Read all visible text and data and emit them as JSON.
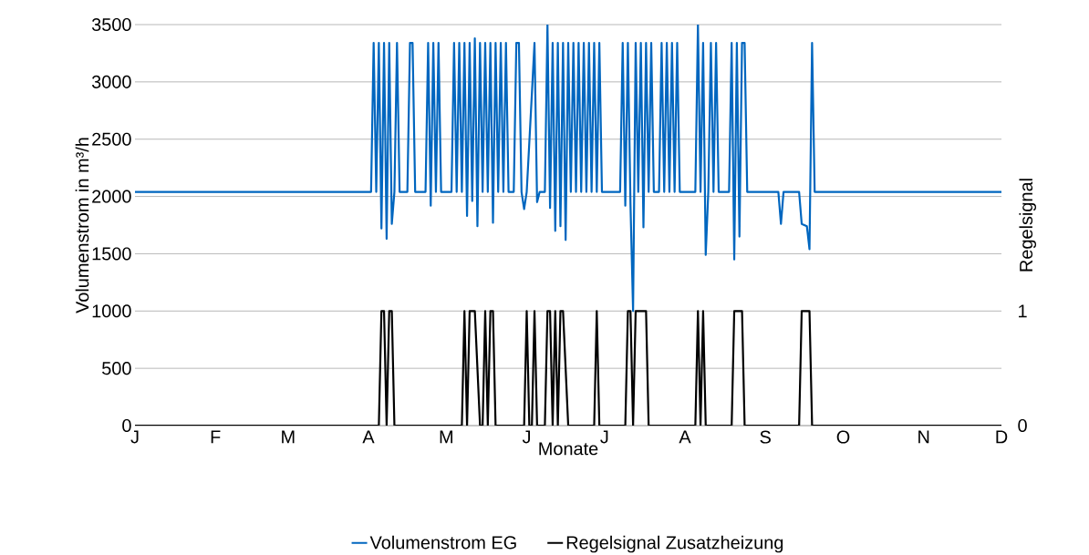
{
  "chart_data": {
    "type": "line",
    "xlabel": "Monate",
    "ylabel": "Volumenstrom in m³/h",
    "y2label": "Regelsignal",
    "categories": [
      "J",
      null,
      null,
      null,
      null,
      null,
      null,
      null,
      null,
      null,
      null,
      null,
      null,
      null,
      null,
      null,
      null,
      null,
      null,
      null,
      null,
      null,
      null,
      null,
      null,
      null,
      null,
      null,
      null,
      null,
      null,
      "F",
      null,
      null,
      null,
      null,
      null,
      null,
      null,
      null,
      null,
      null,
      null,
      null,
      null,
      null,
      null,
      null,
      null,
      null,
      null,
      null,
      null,
      null,
      null,
      null,
      null,
      null,
      null,
      "M",
      null,
      null,
      null,
      null,
      null,
      null,
      null,
      null,
      null,
      null,
      null,
      null,
      null,
      null,
      null,
      null,
      null,
      null,
      null,
      null,
      null,
      null,
      null,
      null,
      null,
      null,
      null,
      null,
      null,
      null,
      "A",
      null,
      null,
      null,
      null,
      null,
      null,
      null,
      null,
      null,
      null,
      null,
      null,
      null,
      null,
      null,
      null,
      null,
      null,
      null,
      null,
      null,
      null,
      null,
      null,
      null,
      null,
      null,
      null,
      null,
      "M",
      null,
      null,
      null,
      null,
      null,
      null,
      null,
      null,
      null,
      null,
      null,
      null,
      null,
      null,
      null,
      null,
      null,
      null,
      null,
      null,
      null,
      null,
      null,
      null,
      null,
      null,
      null,
      null,
      null,
      null,
      "J",
      null,
      null,
      null,
      null,
      null,
      null,
      null,
      null,
      null,
      null,
      null,
      null,
      null,
      null,
      null,
      null,
      null,
      null,
      null,
      null,
      null,
      null,
      null,
      null,
      null,
      null,
      null,
      null,
      null,
      "J",
      null,
      null,
      null,
      null,
      null,
      null,
      null,
      null,
      null,
      null,
      null,
      null,
      null,
      null,
      null,
      null,
      null,
      null,
      null,
      null,
      null,
      null,
      null,
      null,
      null,
      null,
      null,
      null,
      null,
      null,
      "A",
      null,
      null,
      null,
      null,
      null,
      null,
      null,
      null,
      null,
      null,
      null,
      null,
      null,
      null,
      null,
      null,
      null,
      null,
      null,
      null,
      null,
      null,
      null,
      null,
      null,
      null,
      null,
      null,
      null,
      null,
      "S",
      null,
      null,
      null,
      null,
      null,
      null,
      null,
      null,
      null,
      null,
      null,
      null,
      null,
      null,
      null,
      null,
      null,
      null,
      null,
      null,
      null,
      null,
      null,
      null,
      null,
      null,
      null,
      null,
      null,
      "O",
      null,
      null,
      null,
      null,
      null,
      null,
      null,
      null,
      null,
      null,
      null,
      null,
      null,
      null,
      null,
      null,
      null,
      null,
      null,
      null,
      null,
      null,
      null,
      null,
      null,
      null,
      null,
      null,
      null,
      null,
      "N",
      null,
      null,
      null,
      null,
      null,
      null,
      null,
      null,
      null,
      null,
      null,
      null,
      null,
      null,
      null,
      null,
      null,
      null,
      null,
      null,
      null,
      null,
      null,
      null,
      null,
      null,
      null,
      null,
      null,
      "D"
    ],
    "ylim": [
      0,
      3500
    ],
    "yticks": [
      0,
      500,
      1000,
      1500,
      2000,
      2500,
      3000,
      3500
    ],
    "y2lim": [
      0,
      3.5
    ],
    "y2ticks": [
      0,
      1
    ],
    "grid": "y",
    "legend": "bottom",
    "marker": "none",
    "line_style": "solid",
    "series": [
      {
        "name": "Volumenstrom  EG",
        "color": "#0066bf",
        "values": [
          2040,
          2040,
          2040,
          2040,
          2040,
          2040,
          2040,
          2040,
          2040,
          2040,
          2040,
          2040,
          2040,
          2040,
          2040,
          2040,
          2040,
          2040,
          2040,
          2040,
          2040,
          2040,
          2040,
          2040,
          2040,
          2040,
          2040,
          2040,
          2040,
          2040,
          2040,
          2040,
          2040,
          2040,
          2040,
          2040,
          2040,
          2040,
          2040,
          2040,
          2040,
          2040,
          2040,
          2040,
          2040,
          2040,
          2040,
          2040,
          2040,
          2040,
          2040,
          2040,
          2040,
          2040,
          2040,
          2040,
          2040,
          2040,
          2040,
          2040,
          2040,
          2040,
          2040,
          2040,
          2040,
          2040,
          2040,
          2040,
          2040,
          2040,
          2040,
          2040,
          2040,
          2040,
          2040,
          2040,
          2040,
          2040,
          2040,
          2040,
          2040,
          2040,
          2040,
          2040,
          2040,
          2040,
          2040,
          2040,
          2040,
          2040,
          2040,
          2040,
          3340,
          2040,
          3340,
          1720,
          3340,
          1630,
          3340,
          1760,
          2040,
          3340,
          2040,
          2040,
          2040,
          2040,
          3340,
          3340,
          2040,
          2040,
          2040,
          2040,
          2040,
          3340,
          1920,
          3340,
          2040,
          3340,
          2040,
          2040,
          2040,
          2040,
          2040,
          3340,
          2040,
          3340,
          2040,
          3340,
          1830,
          3340,
          1960,
          3380,
          1740,
          3340,
          2040,
          3340,
          2040,
          3340,
          1770,
          3340,
          2040,
          3340,
          2040,
          3340,
          2040,
          2040,
          2040,
          3340,
          3340,
          2040,
          1890,
          2040,
          2470,
          2900,
          3340,
          1950,
          2040,
          2040,
          2040,
          3500,
          1900,
          3340,
          1700,
          3340,
          1740,
          3340,
          1620,
          3340,
          2040,
          3340,
          2040,
          3340,
          2040,
          3340,
          2040,
          3340,
          2040,
          3340,
          2040,
          3340,
          2040,
          2040,
          2040,
          2040,
          2040,
          2040,
          2040,
          2040,
          3340,
          1920,
          3340,
          1930,
          1000,
          3340,
          2040,
          3340,
          1730,
          3340,
          2040,
          3340,
          2040,
          2040,
          2040,
          3340,
          2040,
          3340,
          2040,
          3340,
          2040,
          3340,
          2040,
          2040,
          2040,
          2040,
          2040,
          2040,
          2040,
          3500,
          2040,
          3340,
          1490,
          2040,
          3340,
          2040,
          3340,
          2040,
          2040,
          2040,
          2040,
          2040,
          3340,
          1450,
          3340,
          1650,
          3340,
          3340,
          2040,
          2040,
          2040,
          2040,
          2040,
          2040,
          2040,
          2040,
          2040,
          2040,
          2040,
          2040,
          2040,
          1760,
          2040,
          2040,
          2040,
          2040,
          2040,
          2040,
          2040,
          1760,
          1750,
          1740,
          1540,
          3340,
          2040,
          2040,
          2040,
          2040,
          2040,
          2040,
          2040,
          2040,
          2040,
          2040,
          2040,
          2040,
          2040,
          2040,
          2040,
          2040,
          2040,
          2040,
          2040,
          2040,
          2040,
          2040,
          2040,
          2040,
          2040,
          2040,
          2040,
          2040,
          2040,
          2040,
          2040,
          2040,
          2040,
          2040,
          2040,
          2040,
          2040,
          2040,
          2040,
          2040,
          2040,
          2040,
          2040,
          2040,
          2040,
          2040,
          2040,
          2040,
          2040,
          2040,
          2040,
          2040,
          2040,
          2040,
          2040,
          2040,
          2040,
          2040,
          2040,
          2040,
          2040,
          2040,
          2040,
          2040,
          2040,
          2040,
          2040,
          2040,
          2040,
          2040,
          2040,
          2040,
          2040
        ]
      },
      {
        "name": "Regelsignal  Zusatzheizung",
        "color": "#000000",
        "axis": "y2",
        "values": [
          0,
          0,
          0,
          0,
          0,
          0,
          0,
          0,
          0,
          0,
          0,
          0,
          0,
          0,
          0,
          0,
          0,
          0,
          0,
          0,
          0,
          0,
          0,
          0,
          0,
          0,
          0,
          0,
          0,
          0,
          0,
          0,
          0,
          0,
          0,
          0,
          0,
          0,
          0,
          0,
          0,
          0,
          0,
          0,
          0,
          0,
          0,
          0,
          0,
          0,
          0,
          0,
          0,
          0,
          0,
          0,
          0,
          0,
          0,
          0,
          0,
          0,
          0,
          0,
          0,
          0,
          0,
          0,
          0,
          0,
          0,
          0,
          0,
          0,
          0,
          0,
          0,
          0,
          0,
          0,
          0,
          0,
          0,
          0,
          0,
          0,
          0,
          0,
          0,
          0,
          0,
          0,
          0,
          0,
          0,
          1,
          1,
          0,
          1,
          1,
          0,
          0,
          0,
          0,
          0,
          0,
          0,
          0,
          0,
          0,
          0,
          0,
          0,
          0,
          0,
          0,
          0,
          0,
          0,
          0,
          0,
          0,
          0,
          0,
          0,
          0,
          0,
          1,
          0,
          1,
          1,
          1,
          0.5,
          0,
          0,
          1,
          0,
          1,
          1,
          0,
          0,
          0,
          0,
          0,
          0,
          0,
          0,
          0,
          0,
          0,
          0,
          1,
          0,
          0,
          1,
          0,
          0,
          0,
          0,
          1,
          1,
          0,
          1,
          0,
          1,
          1,
          0.5,
          0,
          0,
          0,
          0,
          0,
          0,
          0,
          0,
          0,
          0,
          0,
          1,
          0,
          0,
          0,
          0,
          0,
          0,
          0,
          0,
          0,
          0,
          0,
          1,
          1,
          0,
          1,
          1,
          1,
          1,
          1,
          0,
          0,
          0,
          0,
          0,
          0,
          0,
          0,
          0,
          0,
          0,
          0,
          0,
          0,
          0,
          0,
          0,
          0,
          0,
          1,
          0,
          1,
          0,
          0,
          0,
          0,
          0,
          0,
          0,
          0,
          0,
          0,
          0,
          1,
          1,
          1,
          1,
          0,
          0,
          0,
          0,
          0,
          0,
          0,
          0,
          0,
          0,
          0,
          0,
          0,
          0,
          0,
          0,
          0,
          0,
          0,
          0,
          0,
          0,
          1,
          1,
          1,
          1,
          0,
          0,
          0,
          0,
          0,
          0,
          0,
          0,
          0,
          0,
          0,
          0,
          0,
          0,
          0,
          0,
          0,
          0,
          0,
          0,
          0,
          0,
          0,
          0,
          0,
          0,
          0,
          0,
          0,
          0,
          0,
          0,
          0,
          0,
          0,
          0,
          0,
          0,
          0,
          0,
          0,
          0,
          0,
          0,
          0,
          0,
          0,
          0,
          0,
          0,
          0,
          0,
          0,
          0,
          0,
          0,
          0,
          0,
          0,
          0,
          0,
          0,
          0,
          0,
          0,
          0,
          0,
          0,
          0,
          0,
          0,
          0,
          0,
          0
        ]
      }
    ]
  }
}
